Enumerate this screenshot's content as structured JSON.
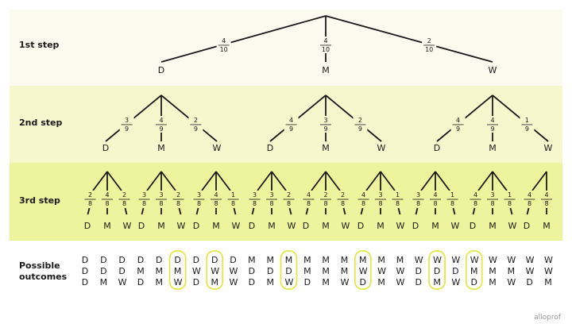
{
  "colors": {
    "band1": "#fafaee",
    "band2": "#f7f7cd",
    "band3": "#eef39d",
    "circle": "#e4e84a",
    "ink": "#1a1a1a"
  },
  "row_labels": {
    "step1": "1st step",
    "step2": "2nd step",
    "step3": "3rd step",
    "outcomes_line1": "Possible",
    "outcomes_line2": "outcomes"
  },
  "step1": [
    {
      "outcome": "D",
      "num": "4",
      "den": "10"
    },
    {
      "outcome": "M",
      "num": "4",
      "den": "10"
    },
    {
      "outcome": "W",
      "num": "2",
      "den": "10"
    }
  ],
  "step2": [
    {
      "parent": "D",
      "branches": [
        {
          "outcome": "D",
          "num": "3",
          "den": "9"
        },
        {
          "outcome": "M",
          "num": "4",
          "den": "9"
        },
        {
          "outcome": "W",
          "num": "2",
          "den": "9"
        }
      ]
    },
    {
      "parent": "M",
      "branches": [
        {
          "outcome": "D",
          "num": "4",
          "den": "9"
        },
        {
          "outcome": "M",
          "num": "3",
          "den": "9"
        },
        {
          "outcome": "W",
          "num": "2",
          "den": "9"
        }
      ]
    },
    {
      "parent": "W",
      "branches": [
        {
          "outcome": "D",
          "num": "4",
          "den": "9"
        },
        {
          "outcome": "M",
          "num": "4",
          "den": "9"
        },
        {
          "outcome": "W",
          "num": "1",
          "den": "9"
        }
      ]
    }
  ],
  "step3": [
    {
      "parent": "DD",
      "branches": [
        {
          "outcome": "D",
          "num": "2",
          "den": "8"
        },
        {
          "outcome": "M",
          "num": "4",
          "den": "8"
        },
        {
          "outcome": "W",
          "num": "2",
          "den": "8"
        }
      ]
    },
    {
      "parent": "DM",
      "branches": [
        {
          "outcome": "D",
          "num": "3",
          "den": "8"
        },
        {
          "outcome": "M",
          "num": "3",
          "den": "8"
        },
        {
          "outcome": "W",
          "num": "2",
          "den": "8"
        }
      ]
    },
    {
      "parent": "DW",
      "branches": [
        {
          "outcome": "D",
          "num": "3",
          "den": "8"
        },
        {
          "outcome": "M",
          "num": "4",
          "den": "8"
        },
        {
          "outcome": "W",
          "num": "1",
          "den": "8"
        }
      ]
    },
    {
      "parent": "MD",
      "branches": [
        {
          "outcome": "D",
          "num": "3",
          "den": "8"
        },
        {
          "outcome": "M",
          "num": "3",
          "den": "8"
        },
        {
          "outcome": "W",
          "num": "2",
          "den": "8"
        }
      ]
    },
    {
      "parent": "MM",
      "branches": [
        {
          "outcome": "D",
          "num": "4",
          "den": "8"
        },
        {
          "outcome": "M",
          "num": "2",
          "den": "8"
        },
        {
          "outcome": "W",
          "num": "2",
          "den": "8"
        }
      ]
    },
    {
      "parent": "MW",
      "branches": [
        {
          "outcome": "D",
          "num": "4",
          "den": "8"
        },
        {
          "outcome": "M",
          "num": "3",
          "den": "8"
        },
        {
          "outcome": "W",
          "num": "1",
          "den": "8"
        }
      ]
    },
    {
      "parent": "WD",
      "branches": [
        {
          "outcome": "D",
          "num": "3",
          "den": "8"
        },
        {
          "outcome": "M",
          "num": "4",
          "den": "8"
        },
        {
          "outcome": "W",
          "num": "1",
          "den": "8"
        }
      ]
    },
    {
      "parent": "WM",
      "branches": [
        {
          "outcome": "D",
          "num": "4",
          "den": "8"
        },
        {
          "outcome": "M",
          "num": "3",
          "den": "8"
        },
        {
          "outcome": "W",
          "num": "1",
          "den": "8"
        }
      ]
    },
    {
      "parent": "WW",
      "branches": [
        {
          "outcome": "D",
          "num": "4",
          "den": "8"
        },
        {
          "outcome": "M",
          "num": "4",
          "den": "8"
        }
      ]
    }
  ],
  "outcomes": [
    {
      "seq": "DDD",
      "circled": false
    },
    {
      "seq": "DDM",
      "circled": false
    },
    {
      "seq": "DDW",
      "circled": false
    },
    {
      "seq": "DMD",
      "circled": false
    },
    {
      "seq": "DMM",
      "circled": false
    },
    {
      "seq": "DMW",
      "circled": true
    },
    {
      "seq": "DWD",
      "circled": false
    },
    {
      "seq": "DWM",
      "circled": true
    },
    {
      "seq": "DWW",
      "circled": false
    },
    {
      "seq": "MDD",
      "circled": false
    },
    {
      "seq": "MDM",
      "circled": false
    },
    {
      "seq": "MDW",
      "circled": true
    },
    {
      "seq": "MMD",
      "circled": false
    },
    {
      "seq": "MMM",
      "circled": false
    },
    {
      "seq": "MMW",
      "circled": false
    },
    {
      "seq": "MWD",
      "circled": true
    },
    {
      "seq": "MWM",
      "circled": false
    },
    {
      "seq": "MWW",
      "circled": false
    },
    {
      "seq": "WDD",
      "circled": false
    },
    {
      "seq": "WDM",
      "circled": true
    },
    {
      "seq": "WDW",
      "circled": false
    },
    {
      "seq": "WMD",
      "circled": true
    },
    {
      "seq": "WMM",
      "circled": false
    },
    {
      "seq": "WMW",
      "circled": false
    },
    {
      "seq": "WWD",
      "circled": false
    },
    {
      "seq": "WWM",
      "circled": false
    }
  ],
  "logo": "alloprof"
}
